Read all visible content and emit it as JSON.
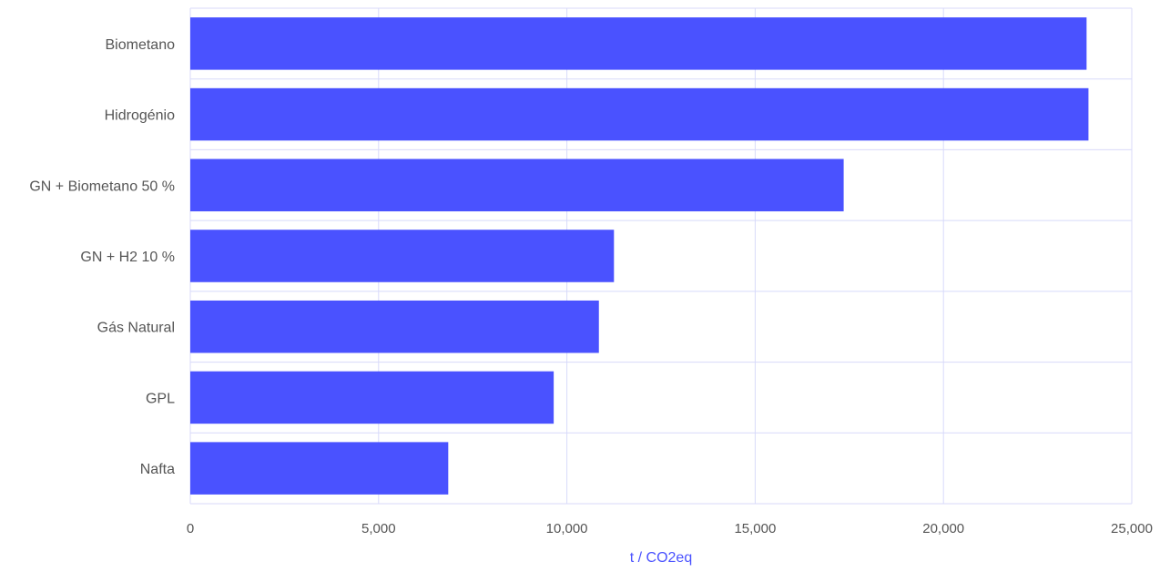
{
  "chart_data": {
    "type": "bar",
    "orientation": "horizontal",
    "categories": [
      "Biometano",
      "Hidrogénio",
      "GN + Biometano 50 %",
      "GN + H2  10 %",
      "Gás Natural",
      "GPL",
      "Nafta"
    ],
    "values": [
      23800,
      23850,
      17350,
      11250,
      10850,
      9650,
      6850
    ],
    "xlabel": "t / CO2eq",
    "ylabel": "",
    "xlim": [
      0,
      25000
    ],
    "xticks": [
      0,
      5000,
      10000,
      15000,
      20000,
      25000
    ],
    "xtick_labels": [
      "0",
      "5,000",
      "10,000",
      "15,000",
      "20,000",
      "25,000"
    ],
    "grid": true,
    "legend": "none",
    "colors": {
      "bar": "#4a52ff",
      "grid": "#d8dafa",
      "axis_title": "#4a52ff",
      "text": "#555555"
    }
  }
}
